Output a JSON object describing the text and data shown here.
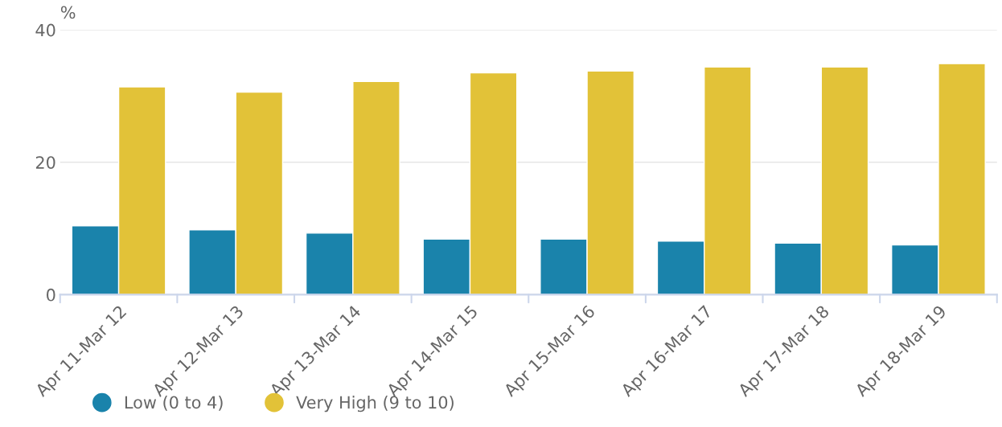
{
  "chart_data": {
    "type": "bar",
    "ylabel": "%",
    "categories": [
      "Apr 11-Mar 12",
      "Apr 12-Mar 13",
      "Apr 13-Mar 14",
      "Apr 14-Mar 15",
      "Apr 15-Mar 16",
      "Apr 16-Mar 17",
      "Apr 17-Mar 18",
      "Apr 18-Mar 19"
    ],
    "series": [
      {
        "name": "Low (0 to 4)",
        "color": "#1a83ab",
        "values": [
          10.4,
          9.8,
          9.3,
          8.4,
          8.4,
          8.1,
          7.8,
          7.5
        ]
      },
      {
        "name": "Very High (9 to 10)",
        "color": "#e2c238",
        "values": [
          31.4,
          30.6,
          32.2,
          33.5,
          33.8,
          34.4,
          34.4,
          34.9
        ]
      }
    ],
    "ylim": [
      0,
      40
    ],
    "yticks": [
      0,
      20,
      40
    ],
    "grid": "y",
    "legend": "bottom left"
  }
}
